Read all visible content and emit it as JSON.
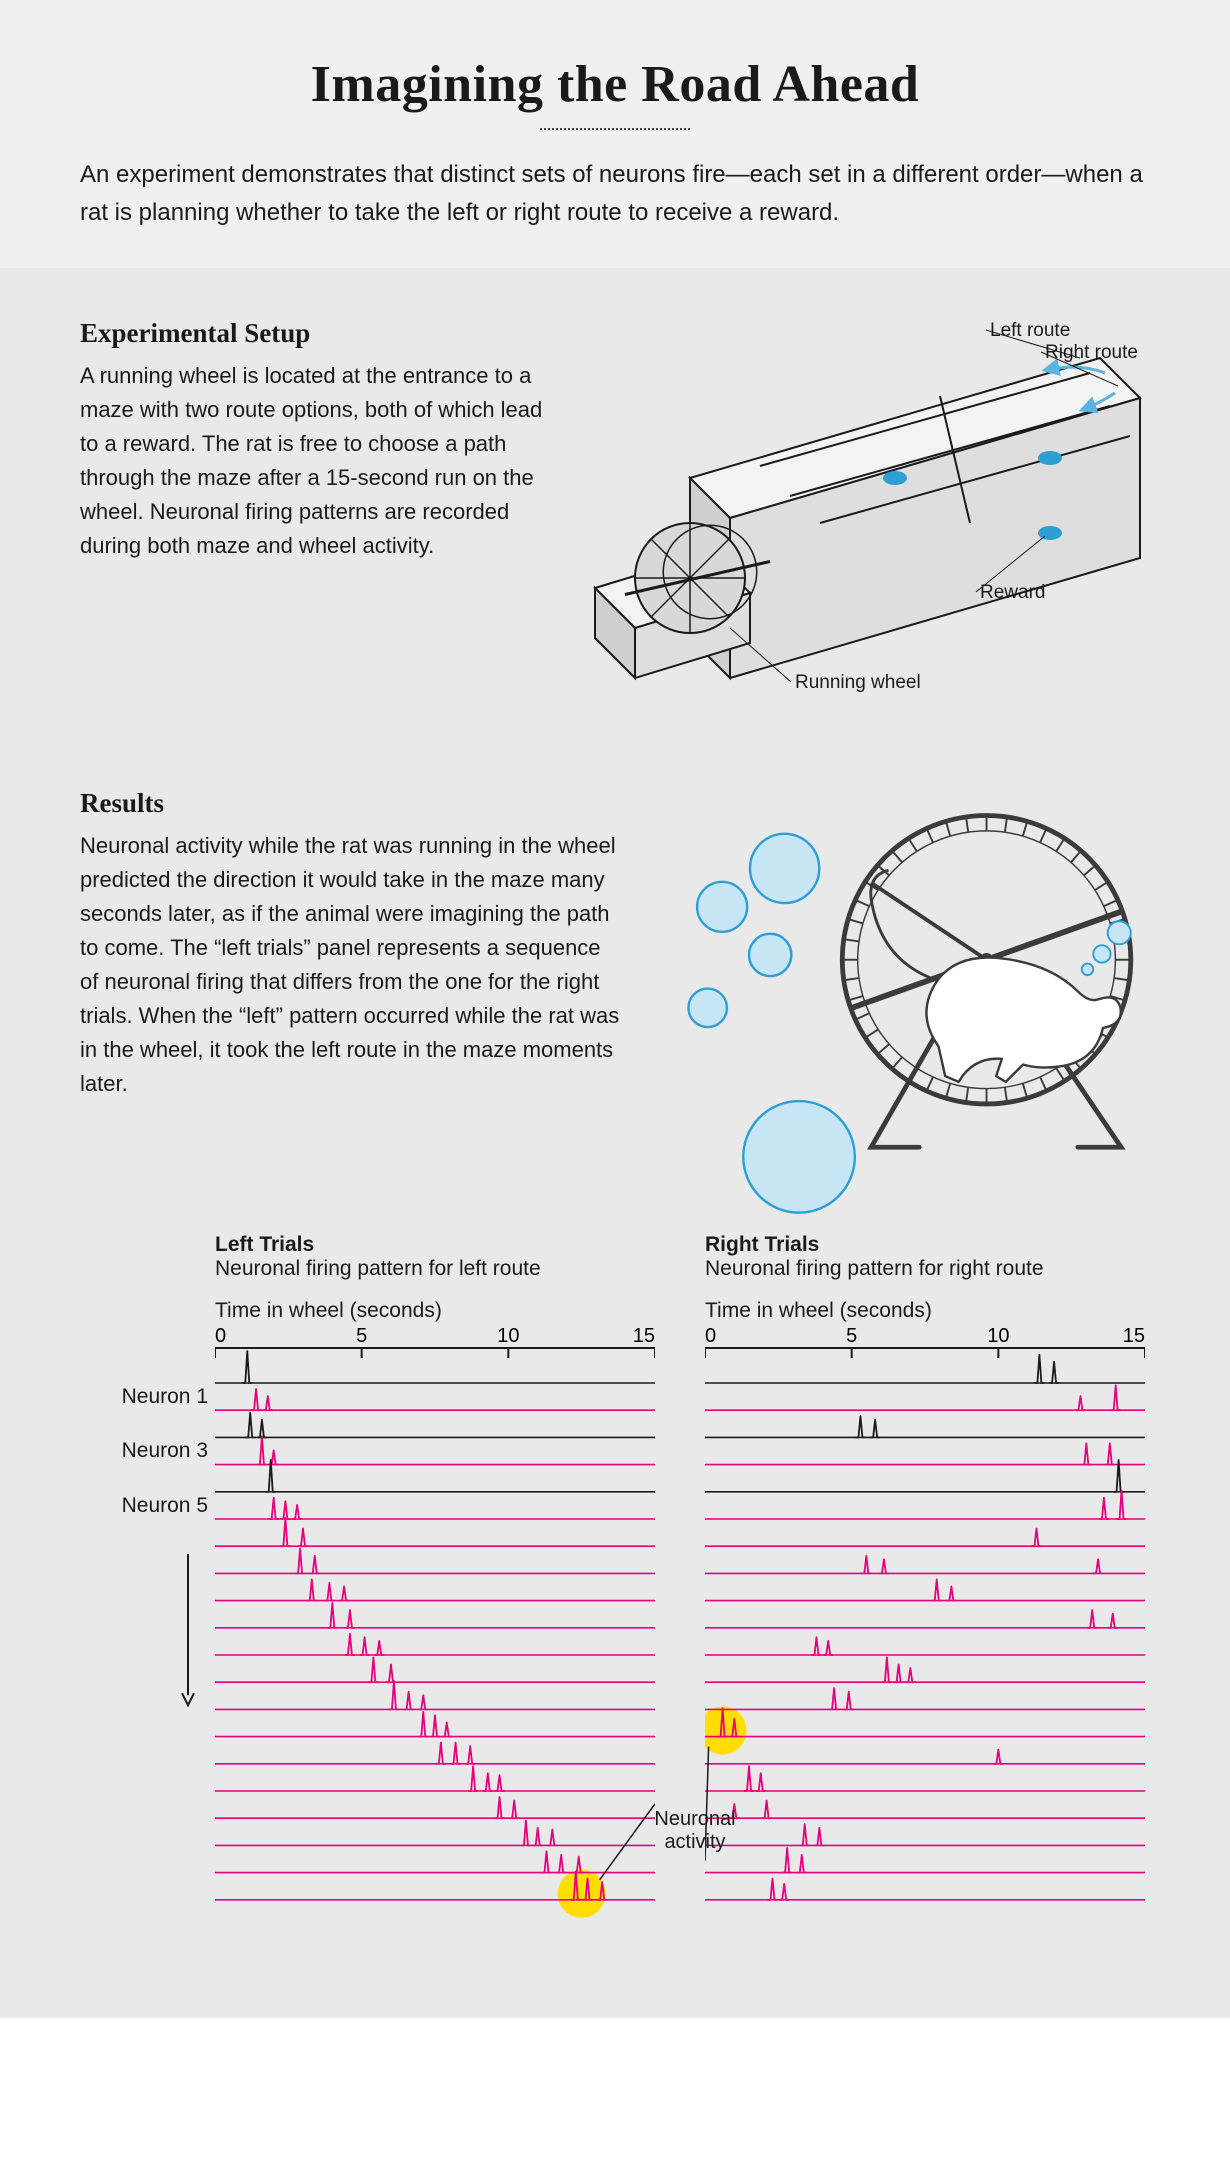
{
  "title": "Imagining the Road Ahead",
  "subtitle": "An experiment demonstrates that distinct sets of neurons fire—each set in a different order—when a rat is planning whether to take the left or right route to receive a reward.",
  "setup": {
    "heading": "Experimental Setup",
    "text": "A running wheel is located at the entrance to a maze with two route options, both of which lead to a reward. The rat is free to choose a path through the maze after a 15-second run on the wheel. Neuronal firing patterns are recorded during both maze and wheel activity.",
    "labels": {
      "left_route": "Left route",
      "right_route": "Right route",
      "reward": "Reward",
      "running_wheel": "Running wheel"
    },
    "colors": {
      "maze_fill": "#f3f3f3",
      "maze_stroke": "#1a1a1a",
      "wheel_fill": "#d8d8d8",
      "reward_fill": "#2d9fd4",
      "arrow": "#5bb4e0"
    }
  },
  "results": {
    "heading": "Results",
    "text": "Neuronal activity while the rat was running in the wheel predicted the direction it would take in the maze many seconds later, as if the animal were imagining the path to come. The “left trials” panel represents a sequence of neuronal firing that differs from the one for the right trials. When the “left” pattern occurred while the rat was in the wheel, it took the left route in the maze moments later.",
    "bubble_fill": "#c7e6f5",
    "bubble_stroke": "#2d9fd4",
    "wheel_stroke": "#3b3b3b",
    "rat_fill": "#ffffff"
  },
  "trials": {
    "left_title": "Left Trials",
    "left_sub": "Neuronal firing pattern for left route",
    "right_title": "Right Trials",
    "right_sub": "Neuronal firing pattern for right route",
    "axis_title": "Time in wheel (seconds)",
    "xmin": 0,
    "xmax": 15,
    "xticks": [
      0,
      5,
      10,
      15
    ],
    "n_neurons": 20,
    "neuron_labels": {
      "1": "Neuron 1",
      "3": "Neuron 3",
      "5": "Neuron 5"
    },
    "row_height": 27.2,
    "black_rows": [
      1,
      3,
      5
    ],
    "colors": {
      "trace_magenta": "#e6007e",
      "trace_black": "#1a1a1a",
      "axis": "#1a1a1a",
      "highlight_fill": "#ffde00",
      "anno_stroke": "#1a1a1a"
    },
    "left_spikes": [
      [
        [
          1.1,
          0.9
        ]
      ],
      [
        [
          1.4,
          0.6
        ],
        [
          1.8,
          0.4
        ]
      ],
      [
        [
          1.2,
          0.7
        ],
        [
          1.6,
          0.5
        ]
      ],
      [
        [
          1.6,
          0.8
        ],
        [
          2.0,
          0.4
        ]
      ],
      [
        [
          1.9,
          0.9
        ]
      ],
      [
        [
          2.0,
          0.6
        ],
        [
          2.4,
          0.5
        ],
        [
          2.8,
          0.4
        ]
      ],
      [
        [
          2.4,
          0.8
        ],
        [
          3.0,
          0.5
        ]
      ],
      [
        [
          2.9,
          0.7
        ],
        [
          3.4,
          0.5
        ]
      ],
      [
        [
          3.3,
          0.6
        ],
        [
          3.9,
          0.5
        ],
        [
          4.4,
          0.4
        ]
      ],
      [
        [
          4.0,
          0.7
        ],
        [
          4.6,
          0.5
        ]
      ],
      [
        [
          4.6,
          0.6
        ],
        [
          5.1,
          0.5
        ],
        [
          5.6,
          0.4
        ]
      ],
      [
        [
          5.4,
          0.7
        ],
        [
          6.0,
          0.5
        ]
      ],
      [
        [
          6.1,
          0.8
        ],
        [
          6.6,
          0.5
        ],
        [
          7.1,
          0.4
        ]
      ],
      [
        [
          7.1,
          0.7
        ],
        [
          7.5,
          0.6
        ],
        [
          7.9,
          0.4
        ]
      ],
      [
        [
          7.7,
          0.6
        ],
        [
          8.2,
          0.6
        ],
        [
          8.7,
          0.5
        ]
      ],
      [
        [
          8.8,
          0.7
        ],
        [
          9.3,
          0.5
        ],
        [
          9.7,
          0.45
        ]
      ],
      [
        [
          9.7,
          0.6
        ],
        [
          10.2,
          0.5
        ]
      ],
      [
        [
          10.6,
          0.7
        ],
        [
          11.0,
          0.5
        ],
        [
          11.5,
          0.45
        ]
      ],
      [
        [
          11.3,
          0.6
        ],
        [
          11.8,
          0.5
        ],
        [
          12.4,
          0.45
        ]
      ],
      [
        [
          12.3,
          0.8
        ],
        [
          12.7,
          0.6
        ],
        [
          13.2,
          0.5
        ]
      ]
    ],
    "right_spikes": [
      [
        [
          11.4,
          0.8
        ],
        [
          11.9,
          0.6
        ]
      ],
      [
        [
          12.8,
          0.4
        ],
        [
          14.0,
          0.7
        ]
      ],
      [
        [
          5.3,
          0.6
        ],
        [
          5.8,
          0.5
        ]
      ],
      [
        [
          13.0,
          0.6
        ],
        [
          13.8,
          0.6
        ]
      ],
      [
        [
          14.1,
          0.9
        ]
      ],
      [
        [
          13.6,
          0.6
        ],
        [
          14.2,
          0.8
        ]
      ],
      [
        [
          11.3,
          0.5
        ]
      ],
      [
        [
          5.5,
          0.5
        ],
        [
          6.1,
          0.4
        ],
        [
          13.4,
          0.4
        ]
      ],
      [
        [
          7.9,
          0.6
        ],
        [
          8.4,
          0.4
        ]
      ],
      [
        [
          13.2,
          0.5
        ],
        [
          13.9,
          0.4
        ]
      ],
      [
        [
          3.8,
          0.5
        ],
        [
          4.2,
          0.4
        ]
      ],
      [
        [
          6.2,
          0.7
        ],
        [
          6.6,
          0.5
        ],
        [
          7.0,
          0.4
        ]
      ],
      [
        [
          4.4,
          0.6
        ],
        [
          4.9,
          0.5
        ]
      ],
      [
        [
          0.6,
          0.8
        ],
        [
          1.0,
          0.5
        ]
      ],
      [
        [
          10.0,
          0.4
        ]
      ],
      [
        [
          1.5,
          0.7
        ],
        [
          1.9,
          0.5
        ]
      ],
      [
        [
          1.0,
          0.4
        ],
        [
          2.1,
          0.5
        ]
      ],
      [
        [
          3.4,
          0.6
        ],
        [
          3.9,
          0.5
        ]
      ],
      [
        [
          2.8,
          0.7
        ],
        [
          3.3,
          0.5
        ]
      ],
      [
        [
          2.3,
          0.6
        ],
        [
          2.7,
          0.45
        ]
      ]
    ],
    "anno_label": "Neuronal\nactivity",
    "anno_highlight_left": {
      "row": 20,
      "x": 12.5
    },
    "anno_highlight_right": {
      "row": 14,
      "x": 0.6
    }
  }
}
